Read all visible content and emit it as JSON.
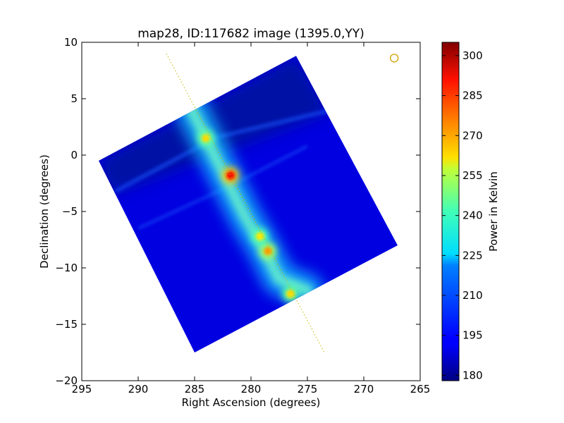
{
  "chart_data": {
    "type": "heatmap",
    "title": "map28, ID:117682 image (1395.0,YY)",
    "xlabel": "Right Ascension (degrees)",
    "ylabel": "Declination (degrees)",
    "xlim": [
      295,
      265
    ],
    "ylim": [
      -20,
      10
    ],
    "xticks": [
      295,
      290,
      285,
      280,
      275,
      270,
      265
    ],
    "yticks": [
      10,
      5,
      0,
      -5,
      -10,
      -15,
      -20
    ],
    "grid": false,
    "colormap": "jet",
    "colorbar": {
      "label": "Power in Kelvin",
      "range": [
        178,
        305
      ],
      "ticks": [
        180,
        195,
        210,
        225,
        240,
        255,
        270,
        285,
        300
      ]
    },
    "map_footprint_corners": [
      {
        "ra": 293.5,
        "dec": -0.5
      },
      {
        "ra": 276.0,
        "dec": 8.8
      },
      {
        "ra": 267.0,
        "dec": -8.0
      },
      {
        "ra": 285.0,
        "dec": -17.5
      }
    ],
    "background_level": 190,
    "hot_spots": [
      {
        "ra": 281.8,
        "dec": -1.8,
        "value": 290
      },
      {
        "ra": 284.0,
        "dec": 1.5,
        "value": 262
      },
      {
        "ra": 278.5,
        "dec": -8.5,
        "value": 270
      },
      {
        "ra": 279.2,
        "dec": -7.2,
        "value": 260
      },
      {
        "ra": 276.5,
        "dec": -12.3,
        "value": 262
      }
    ],
    "ridge_path": [
      {
        "ra": 285.5,
        "dec": 4.5
      },
      {
        "ra": 283.5,
        "dec": 0.5
      },
      {
        "ra": 282.0,
        "dec": -2.5
      },
      {
        "ra": 280.5,
        "dec": -5.5
      },
      {
        "ra": 279.0,
        "dec": -8.0
      },
      {
        "ra": 277.5,
        "dec": -11.0
      },
      {
        "ra": 275.0,
        "dec": -12.0
      }
    ],
    "galactic_plane_line": [
      {
        "ra": 287.5,
        "dec": 9.0
      },
      {
        "ra": 273.5,
        "dec": -17.5
      }
    ],
    "beam_marker": {
      "ra": 267.3,
      "dec": 8.6
    },
    "colors": {
      "plane_line": "#c8b400",
      "beam_marker": "#d4a000"
    }
  }
}
